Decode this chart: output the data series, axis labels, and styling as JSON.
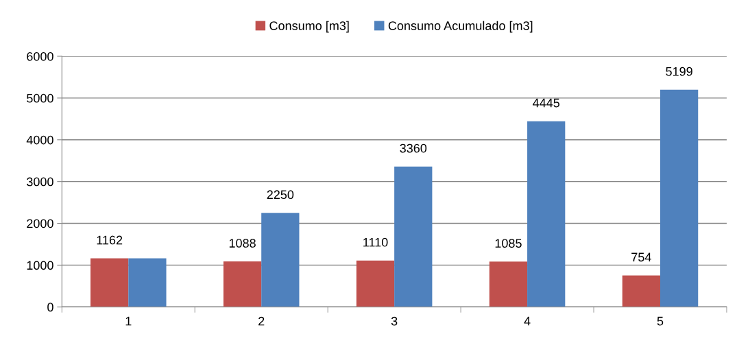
{
  "chart_data": {
    "type": "bar",
    "categories": [
      "1",
      "2",
      "3",
      "4",
      "5"
    ],
    "series": [
      {
        "name": "Consumo [m3]",
        "color": "#c0504d",
        "values": [
          1162,
          1088,
          1110,
          1085,
          754
        ],
        "value_labels": [
          "1162",
          "1088",
          "1110",
          "1085",
          "754"
        ]
      },
      {
        "name": "Consumo Acumulado [m3]",
        "color": "#4f81bd",
        "values": [
          1162,
          2250,
          3360,
          4445,
          5199
        ],
        "value_labels": [
          null,
          "2250",
          "3360",
          "4445",
          "5199"
        ]
      }
    ],
    "ylim": [
      0,
      6000
    ],
    "yticks": [
      0,
      1000,
      2000,
      3000,
      4000,
      5000,
      6000
    ],
    "grid": "y",
    "legend": "top"
  }
}
